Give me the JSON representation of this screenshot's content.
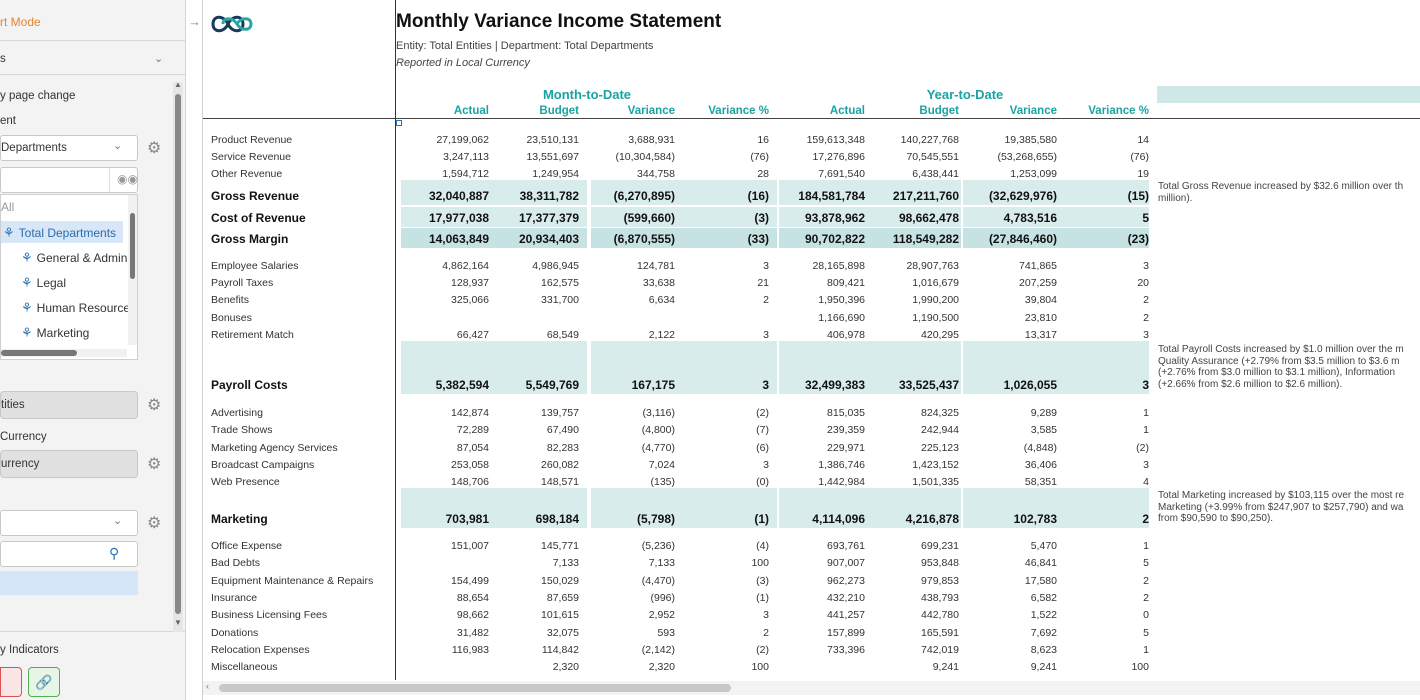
{
  "sidebar": {
    "mode_label": "rt Mode",
    "section1": "s",
    "page_change": "y page change",
    "ent_label": "ent",
    "departments_dd": "Departments",
    "all": "All",
    "tree": [
      "Total Departments",
      "General & Admin",
      "Legal",
      "Human Resource",
      "Marketing"
    ],
    "entities": "tities",
    "currency_label": "Currency",
    "currency_value": "urrency",
    "indicators": "y Indicators"
  },
  "report": {
    "title": "Monthly Variance Income Statement",
    "subtitle": "Entity: Total Entities | Department: Total Departments",
    "currency_note": "Reported in Local Currency",
    "mtd": "Month-to-Date",
    "ytd": "Year-to-Date",
    "cols": [
      "Actual",
      "Budget",
      "Variance",
      "Variance %",
      "Actual",
      "Budget",
      "Variance",
      "Variance %"
    ],
    "rows": [
      {
        "label": "Product Revenue",
        "v": [
          "27,199,062",
          "23,510,131",
          "3,688,931",
          "16",
          "159,613,348",
          "140,227,768",
          "19,385,580",
          "14"
        ]
      },
      {
        "label": "Service Revenue",
        "v": [
          "3,247,113",
          "13,551,697",
          "(10,304,584)",
          "(76)",
          "17,276,896",
          "70,545,551",
          "(53,268,655)",
          "(76)"
        ]
      },
      {
        "label": "Other Revenue",
        "v": [
          "1,594,712",
          "1,249,954",
          "344,758",
          "28",
          "7,691,540",
          "6,438,441",
          "1,253,099",
          "19"
        ]
      },
      {
        "label": "Gross Revenue",
        "v": [
          "32,040,887",
          "38,311,782",
          "(6,270,895)",
          "(16)",
          "184,581,784",
          "217,211,760",
          "(32,629,976)",
          "(15)"
        ]
      },
      {
        "label": "Cost of Revenue",
        "v": [
          "17,977,038",
          "17,377,379",
          "(599,660)",
          "(3)",
          "93,878,962",
          "98,662,478",
          "4,783,516",
          "5"
        ]
      },
      {
        "label": "Gross Margin",
        "v": [
          "14,063,849",
          "20,934,403",
          "(6,870,555)",
          "(33)",
          "90,702,822",
          "118,549,282",
          "(27,846,460)",
          "(23)"
        ]
      },
      {
        "label": "Employee Salaries",
        "v": [
          "4,862,164",
          "4,986,945",
          "124,781",
          "3",
          "28,165,898",
          "28,907,763",
          "741,865",
          "3"
        ]
      },
      {
        "label": "Payroll Taxes",
        "v": [
          "128,937",
          "162,575",
          "33,638",
          "21",
          "809,421",
          "1,016,679",
          "207,259",
          "20"
        ]
      },
      {
        "label": "Benefits",
        "v": [
          "325,066",
          "331,700",
          "6,634",
          "2",
          "1,950,396",
          "1,990,200",
          "39,804",
          "2"
        ]
      },
      {
        "label": "Bonuses",
        "v": [
          "",
          "",
          "",
          "",
          "1,166,690",
          "1,190,500",
          "23,810",
          "2"
        ]
      },
      {
        "label": "Retirement Match",
        "v": [
          "66,427",
          "68,549",
          "2,122",
          "3",
          "406,978",
          "420,295",
          "13,317",
          "3"
        ]
      },
      {
        "label": "Payroll Costs",
        "v": [
          "5,382,594",
          "5,549,769",
          "167,175",
          "3",
          "32,499,383",
          "33,525,437",
          "1,026,055",
          "3"
        ]
      },
      {
        "label": "Advertising",
        "v": [
          "142,874",
          "139,757",
          "(3,116)",
          "(2)",
          "815,035",
          "824,325",
          "9,289",
          "1"
        ]
      },
      {
        "label": "Trade Shows",
        "v": [
          "72,289",
          "67,490",
          "(4,800)",
          "(7)",
          "239,359",
          "242,944",
          "3,585",
          "1"
        ]
      },
      {
        "label": "Marketing Agency Services",
        "v": [
          "87,054",
          "82,283",
          "(4,770)",
          "(6)",
          "229,971",
          "225,123",
          "(4,848)",
          "(2)"
        ]
      },
      {
        "label": "Broadcast Campaigns",
        "v": [
          "253,058",
          "260,082",
          "7,024",
          "3",
          "1,386,746",
          "1,423,152",
          "36,406",
          "3"
        ]
      },
      {
        "label": "Web Presence",
        "v": [
          "148,706",
          "148,571",
          "(135)",
          "(0)",
          "1,442,984",
          "1,501,335",
          "58,351",
          "4"
        ]
      },
      {
        "label": "Marketing",
        "v": [
          "703,981",
          "698,184",
          "(5,798)",
          "(1)",
          "4,114,096",
          "4,216,878",
          "102,783",
          "2"
        ]
      },
      {
        "label": "Office Expense",
        "v": [
          "151,007",
          "145,771",
          "(5,236)",
          "(4)",
          "693,761",
          "699,231",
          "5,470",
          "1"
        ]
      },
      {
        "label": "Bad Debts",
        "v": [
          "",
          "7,133",
          "7,133",
          "100",
          "907,007",
          "953,848",
          "46,841",
          "5"
        ]
      },
      {
        "label": "Equipment Maintenance & Repairs",
        "v": [
          "154,499",
          "150,029",
          "(4,470)",
          "(3)",
          "962,273",
          "979,853",
          "17,580",
          "2"
        ]
      },
      {
        "label": "Insurance",
        "v": [
          "88,654",
          "87,659",
          "(996)",
          "(1)",
          "432,210",
          "438,793",
          "6,582",
          "2"
        ]
      },
      {
        "label": "Business Licensing Fees",
        "v": [
          "98,662",
          "101,615",
          "2,952",
          "3",
          "441,257",
          "442,780",
          "1,522",
          "0"
        ]
      },
      {
        "label": "Donations",
        "v": [
          "31,482",
          "32,075",
          "593",
          "2",
          "157,899",
          "165,591",
          "7,692",
          "5"
        ]
      },
      {
        "label": "Relocation Expenses",
        "v": [
          "116,983",
          "114,842",
          "(2,142)",
          "(2)",
          "733,396",
          "742,019",
          "8,623",
          "1"
        ]
      },
      {
        "label": "Miscellaneous",
        "v": [
          "",
          "2,320",
          "2,320",
          "100",
          "",
          "9,241",
          "9,241",
          "100"
        ]
      }
    ],
    "comments": {
      "gross": "Total Gross Revenue increased by $32.6 million over th\nmillion).",
      "payroll": "Total Payroll Costs increased by $1.0 million over the m\nQuality Assurance (+2.79% from $3.5 million to $3.6 m\n(+2.76% from $3.0 million to $3.1 million), Information\n(+2.66% from $2.6 million to $2.6 million).",
      "marketing": "Total Marketing increased by $103,115 over the most re\nMarketing (+3.99% from $247,907 to $257,790) and wa\nfrom $90,590 to $90,250)."
    }
  },
  "colors": {
    "teal": "#1aa3a3",
    "band": "#d9ecec",
    "accent": "#e8842c"
  }
}
